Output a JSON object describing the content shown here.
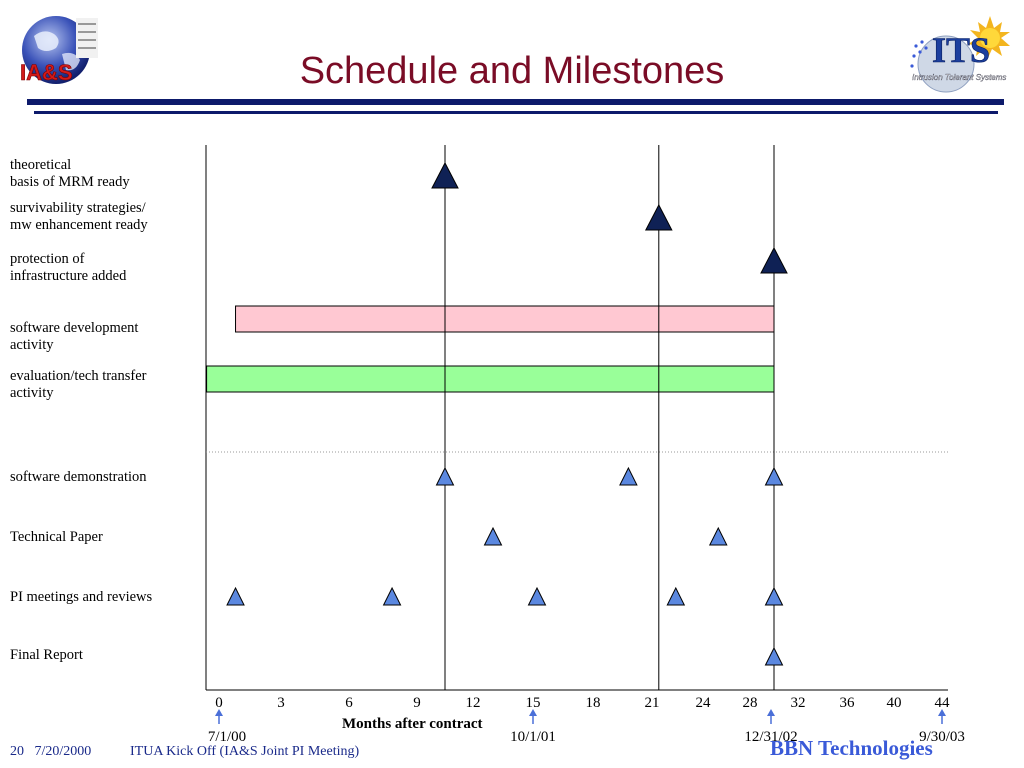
{
  "header": {
    "title": "Schedule and Milestones",
    "logo_left_text": "IA&S",
    "logo_right_text": "ITS",
    "logo_right_caption": "Intrusion Tolerant Systems"
  },
  "row_labels": [
    "theoretical\nbasis of MRM ready",
    "survivability  strategies/\nmw enhancement ready",
    "protection of\ninfrastructure added",
    "software development\nactivity",
    "evaluation/tech transfer\nactivity",
    "software demonstration",
    "Technical Paper",
    "PI meetings and reviews",
    "Final Report"
  ],
  "chart_data": {
    "type": "gantt",
    "xlabel": "Months after contract",
    "x_ticks": [
      "0",
      "3",
      "6",
      "9",
      "12",
      "15",
      "18",
      "21",
      "24",
      "28",
      "32",
      "36",
      "40",
      "44"
    ],
    "reference_dates": [
      {
        "label": "7/1/00",
        "at_tick": "0"
      },
      {
        "label": "10/1/01",
        "at_tick": "15"
      },
      {
        "label": "12/31/02",
        "at_tick": "30"
      },
      {
        "label": "9/30/03",
        "at_tick": "44"
      }
    ],
    "vertical_markers": [
      10.5,
      21.4,
      30
    ],
    "milestones": [
      {
        "row": "theoretical basis of MRM ready",
        "month": 10.5,
        "style": "major"
      },
      {
        "row": "survivability  strategies/ mw enhancement ready",
        "month": 21.4,
        "style": "major"
      },
      {
        "row": "protection of infrastructure added",
        "month": 30,
        "style": "major"
      }
    ],
    "bars": [
      {
        "row": "software development activity",
        "start": 0.8,
        "end": 30,
        "color": "#ffc8d2"
      },
      {
        "row": "evaluation/tech transfer activity",
        "start": -0.6,
        "end": 30,
        "color": "#99ff99"
      }
    ],
    "events": [
      {
        "row": "software demonstration",
        "months": [
          10.5,
          19.8,
          30
        ]
      },
      {
        "row": "Technical Paper",
        "months": [
          13,
          25.3
        ]
      },
      {
        "row": "PI meetings and reviews",
        "months": [
          0.8,
          7.9,
          15.2,
          22.4,
          30
        ]
      },
      {
        "row": "Final Report",
        "months": [
          30
        ]
      }
    ],
    "colors": {
      "major": "#0f2155",
      "event": "#5b88e0",
      "date_arrow": "#4a6fd8"
    }
  },
  "footer": {
    "slide_number": "20",
    "date": "7/20/2000",
    "event": "ITUA Kick Off (IA&S Joint PI Meeting)",
    "company": "BBN Technologies"
  }
}
